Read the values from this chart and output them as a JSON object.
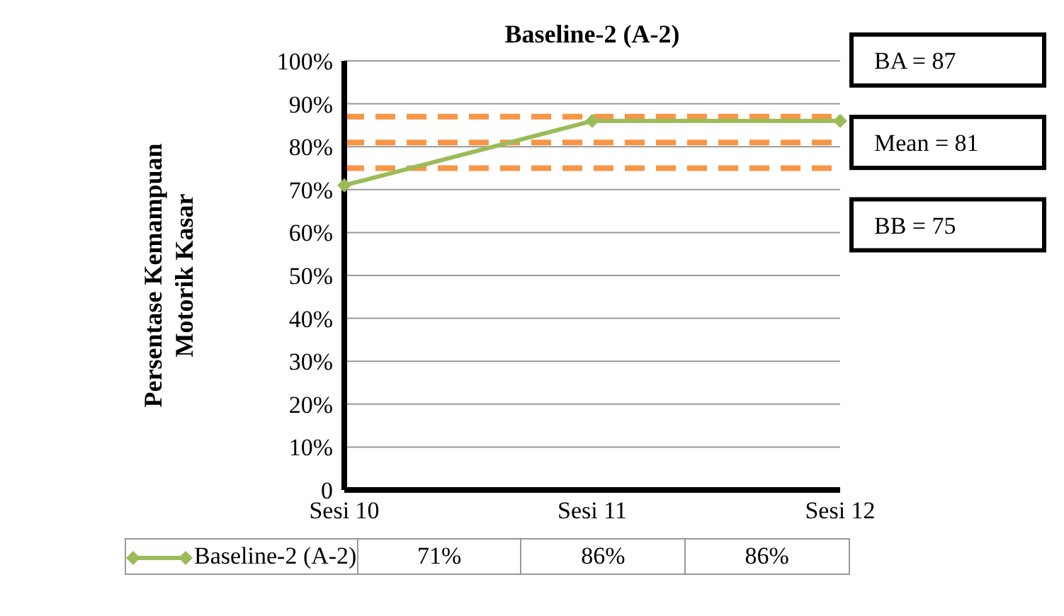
{
  "chart_data": {
    "type": "line",
    "title": "Baseline-2 (A-2)",
    "ylabel": "Persentase Kemampuan Motorik Kasar",
    "categories": [
      "Sesi 10",
      "Sesi 11",
      "Sesi 12"
    ],
    "series": [
      {
        "name": "Baseline-2 (A-2)",
        "color": "#9bbb59",
        "values": [
          71,
          86,
          86
        ],
        "value_labels": [
          "71%",
          "86%",
          "86%"
        ]
      }
    ],
    "ylim": [
      0,
      100
    ],
    "yticks": [
      0,
      {
        "value": 10,
        "label": "10%"
      },
      {
        "value": 20,
        "label": "20%"
      },
      {
        "value": 30,
        "label": "30%"
      },
      {
        "value": 40,
        "label": "40%"
      },
      {
        "value": 50,
        "label": "50%"
      },
      {
        "value": 60,
        "label": "60%"
      },
      {
        "value": 70,
        "label": "70%"
      },
      {
        "value": 80,
        "label": "80%"
      },
      {
        "value": 90,
        "label": "90%"
      },
      {
        "value": 100,
        "label": "100%"
      }
    ],
    "ref_lines": [
      {
        "axis": "y",
        "value": 87,
        "label": "BA = 87",
        "color": "#f79646",
        "line_style": "dashed"
      },
      {
        "axis": "y",
        "value": 81,
        "label": "Mean = 81",
        "color": "#f79646",
        "line_style": "dashed"
      },
      {
        "axis": "y",
        "value": 75,
        "label": "BB = 75",
        "color": "#f79646",
        "line_style": "dashed"
      }
    ],
    "grid": "y",
    "legend": "bottom",
    "marker": "diamond",
    "line_style": "solid"
  }
}
